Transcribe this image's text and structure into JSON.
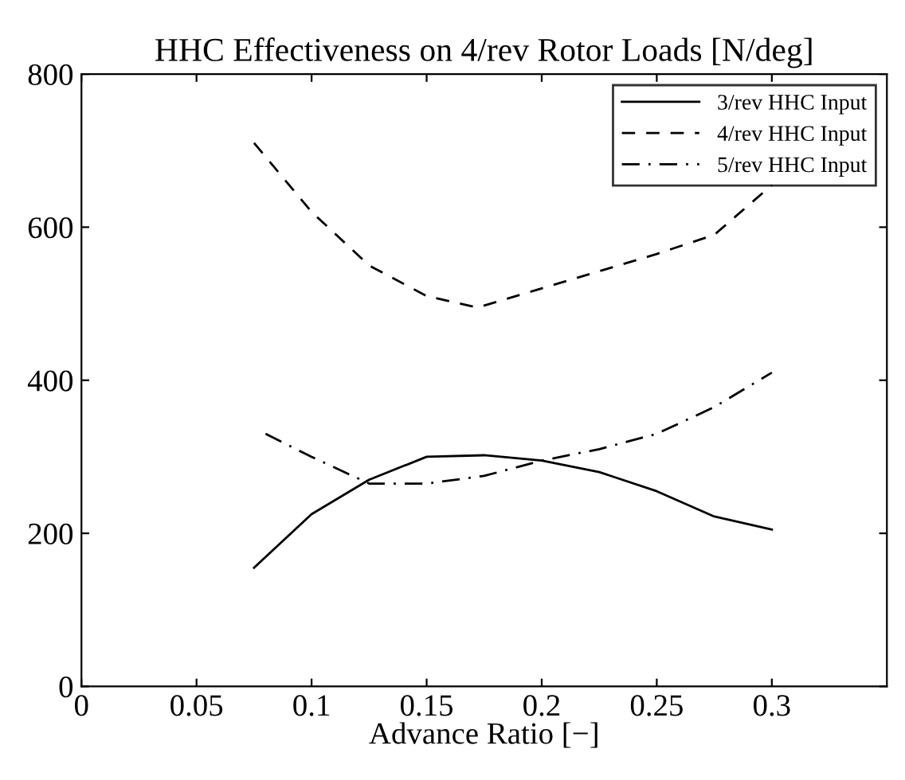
{
  "chart_data": {
    "type": "line",
    "title": "HHC Effectiveness on 4/rev Rotor Loads [N/deg]",
    "xlabel": "Advance Ratio [−]",
    "xlim": [
      0,
      0.35
    ],
    "xticks": [
      0,
      0.05,
      0.1,
      0.15,
      0.2,
      0.25,
      0.3
    ],
    "ylim": [
      0,
      800
    ],
    "yticks": [
      0,
      200,
      400,
      600,
      800
    ],
    "grid": false,
    "legend": "top right",
    "series": [
      {
        "name": "3/rev HHC Input",
        "color": "#000000",
        "line_style": "solid",
        "x": [
          0.075,
          0.1,
          0.125,
          0.15,
          0.175,
          0.2,
          0.225,
          0.25,
          0.275,
          0.3
        ],
        "values": [
          155,
          225,
          270,
          300,
          302,
          295,
          280,
          255,
          222,
          205
        ]
      },
      {
        "name": "4/rev HHC Input",
        "color": "#000000",
        "line_style": "dashed",
        "x": [
          0.075,
          0.1,
          0.125,
          0.15,
          0.172,
          0.2,
          0.25,
          0.275,
          0.3
        ],
        "values": [
          710,
          620,
          550,
          510,
          495,
          520,
          565,
          590,
          655
        ]
      },
      {
        "name": "5/rev HHC Input",
        "color": "#000000",
        "line_style": "dashdot",
        "x": [
          0.08,
          0.1,
          0.125,
          0.15,
          0.175,
          0.2,
          0.225,
          0.25,
          0.275,
          0.3
        ],
        "values": [
          330,
          300,
          265,
          265,
          275,
          295,
          310,
          330,
          365,
          410
        ]
      }
    ]
  }
}
